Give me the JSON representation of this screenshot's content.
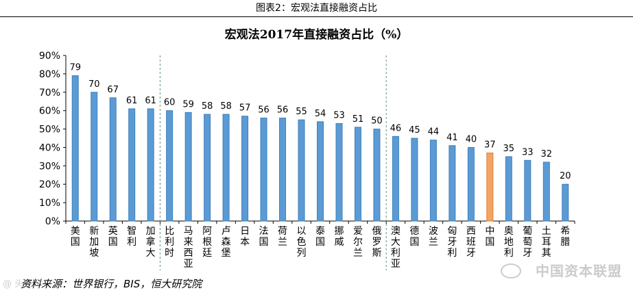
{
  "figure_caption": "图表2：宏观法直接融资占比",
  "chart_data": {
    "type": "bar",
    "title": "宏观法2017年直接融资占比（%）",
    "xlabel": "",
    "ylabel": "",
    "categories": [
      "美国",
      "新加坡",
      "英国",
      "智利",
      "加拿大",
      "比利时",
      "马来西亚",
      "阿根廷",
      "卢森堡",
      "日本",
      "法国",
      "荷兰",
      "以色列",
      "泰国",
      "挪威",
      "爱尔兰",
      "俄罗斯",
      "澳大利亚",
      "德国",
      "波兰",
      "匈牙利",
      "西班牙",
      "中国",
      "奥地利",
      "葡萄牙",
      "土耳其",
      "希腊"
    ],
    "values": [
      79,
      70,
      67,
      61,
      61,
      60,
      59,
      58,
      58,
      57,
      56,
      56,
      55,
      54,
      53,
      51,
      50,
      46,
      45,
      44,
      41,
      40,
      37,
      35,
      33,
      32,
      20
    ],
    "data_labels": [
      "79",
      "70",
      "67",
      "61",
      "61",
      "60",
      "59",
      "58",
      "58",
      "57",
      "56",
      "56",
      "55",
      "54",
      "53",
      "51",
      "50",
      "46",
      "45",
      "44",
      "41",
      "40",
      "37",
      "35",
      "33",
      "32",
      "20"
    ],
    "highlight_category": "中国",
    "ylim": [
      0,
      90
    ],
    "yticks": [
      "0%",
      "10%",
      "20%",
      "30%",
      "40%",
      "50%",
      "60%",
      "70%",
      "80%",
      "90%"
    ],
    "grid": false,
    "group_separators_after": [
      "加拿大",
      "俄罗斯"
    ],
    "colors": {
      "bar": "#5b9bd5",
      "bar_edge": "#3f7fb9",
      "highlight": "#f4a460",
      "highlight_edge": "#e07b39"
    }
  },
  "source_note": "资料来源：世界银行，BIS，恒大研究院",
  "watermark_text": "中国资本联盟",
  "corner_watermark": "@ 头条"
}
